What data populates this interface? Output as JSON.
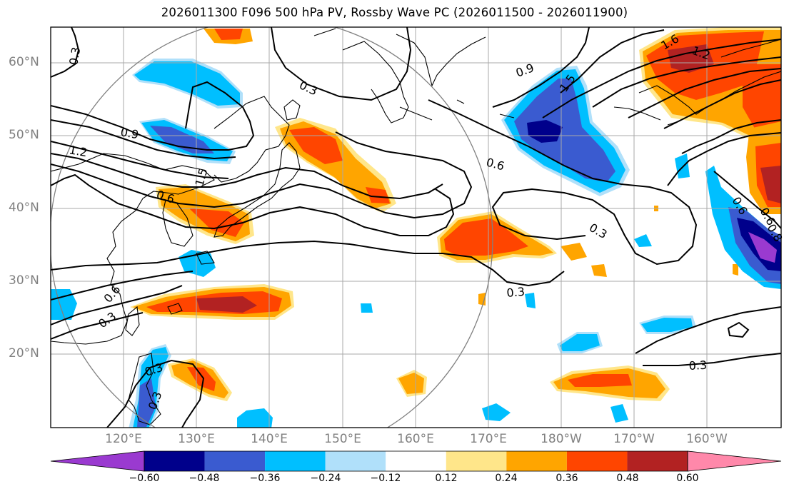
{
  "title": "2026011300 F096 500 hPa PV, Rossby Wave PC (2026011500 - 2026011900)",
  "lat_labels": [
    "60°N",
    "50°N",
    "40°N",
    "30°N",
    "20°N"
  ],
  "lon_labels": [
    "120°E",
    "130°E",
    "140°E",
    "150°E",
    "160°E",
    "170°E",
    "180°W",
    "170°W",
    "160°W"
  ],
  "colorbar": {
    "labels": [
      "−0.60",
      "−0.48",
      "−0.36",
      "−0.24",
      "−0.12",
      "0.12",
      "0.24",
      "0.36",
      "0.48",
      "0.60"
    ],
    "colors": [
      "#9a3ad0",
      "#00008b",
      "#3a5bd0",
      "#00bfff",
      "#b0e0fa",
      "#ffffff",
      "#ffe68a",
      "#ffa500",
      "#ff4500",
      "#b22222",
      "#ff88aa"
    ]
  },
  "contour_labels": [
    "0.3",
    "0.3",
    "0.9",
    "1.5",
    "1.6",
    "1.2",
    "0.9",
    "1.2",
    "1.5",
    "0.6",
    "0.6",
    "0.3",
    "0.6",
    "0.6",
    "0.3",
    "0.3",
    "0.3",
    "0.3",
    "0.6",
    "0.8",
    "0.3"
  ],
  "colors": {
    "grid": "#a9a9a9",
    "axis_label": "#808080",
    "contour": "#000000",
    "circle": "#808080"
  }
}
